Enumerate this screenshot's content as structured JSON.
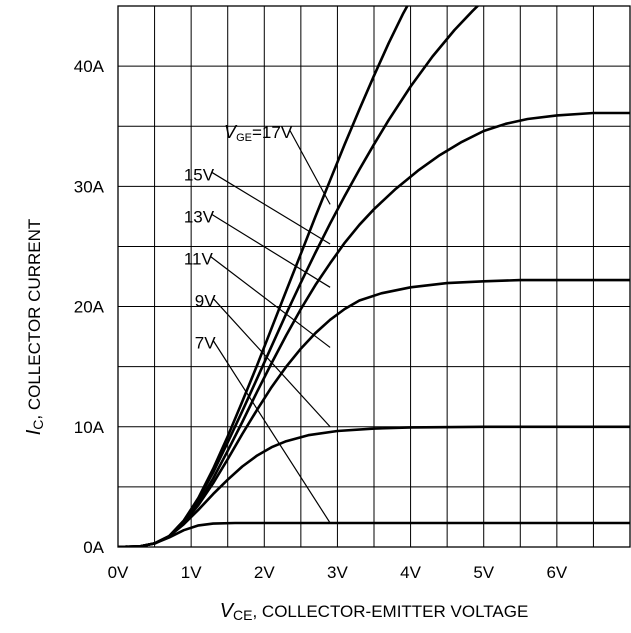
{
  "chart_data": {
    "type": "line",
    "xlim": [
      0,
      7
    ],
    "ylim": [
      0,
      45
    ],
    "grid": true,
    "x_ticks": [
      {
        "value": 0,
        "label": "0V"
      },
      {
        "value": 1,
        "label": "1V"
      },
      {
        "value": 2,
        "label": "2V"
      },
      {
        "value": 3,
        "label": "3V"
      },
      {
        "value": 4,
        "label": "4V"
      },
      {
        "value": 5,
        "label": "5V"
      },
      {
        "value": 6,
        "label": "6V"
      }
    ],
    "y_ticks": [
      {
        "value": 0,
        "label": "0A"
      },
      {
        "value": 10,
        "label": "10A"
      },
      {
        "value": 20,
        "label": "20A"
      },
      {
        "value": 30,
        "label": "30A"
      },
      {
        "value": 40,
        "label": "40A"
      }
    ],
    "xlabel": {
      "symbol": "V",
      "subscript": "CE",
      "text": ", COLLECTOR-EMITTER VOLTAGE"
    },
    "ylabel": {
      "symbol": "I",
      "subscript": "C",
      "text": ", COLLECTOR CURRENT"
    },
    "legend_prefix": {
      "symbol": "V",
      "subscript": "GE",
      "text": "="
    },
    "series": [
      {
        "name": "7V",
        "label_at": {
          "x": 1.05,
          "y": 16.5
        },
        "leader_to": {
          "x": 2.9,
          "y": 2.0
        },
        "points": [
          [
            0,
            0
          ],
          [
            0.3,
            0.05
          ],
          [
            0.5,
            0.3
          ],
          [
            0.7,
            0.8
          ],
          [
            0.9,
            1.4
          ],
          [
            1.1,
            1.8
          ],
          [
            1.3,
            1.95
          ],
          [
            1.6,
            2.0
          ],
          [
            2,
            2.0
          ],
          [
            7,
            2.0
          ]
        ]
      },
      {
        "name": "9V",
        "label_at": {
          "x": 1.05,
          "y": 20.0
        },
        "leader_to": {
          "x": 2.9,
          "y": 10.0
        },
        "points": [
          [
            0,
            0
          ],
          [
            0.3,
            0.05
          ],
          [
            0.5,
            0.3
          ],
          [
            0.7,
            0.9
          ],
          [
            0.9,
            1.9
          ],
          [
            1.1,
            3.1
          ],
          [
            1.3,
            4.4
          ],
          [
            1.5,
            5.6
          ],
          [
            1.7,
            6.7
          ],
          [
            1.9,
            7.6
          ],
          [
            2.1,
            8.3
          ],
          [
            2.3,
            8.8
          ],
          [
            2.6,
            9.3
          ],
          [
            3,
            9.65
          ],
          [
            3.5,
            9.85
          ],
          [
            4,
            9.95
          ],
          [
            5,
            10.0
          ],
          [
            7,
            10.0
          ]
        ]
      },
      {
        "name": "11V",
        "label_at": {
          "x": 0.9,
          "y": 23.5
        },
        "leader_to": {
          "x": 2.9,
          "y": 16.6
        },
        "points": [
          [
            0,
            0
          ],
          [
            0.3,
            0.05
          ],
          [
            0.5,
            0.3
          ],
          [
            0.7,
            0.9
          ],
          [
            0.9,
            2.0
          ],
          [
            1.1,
            3.5
          ],
          [
            1.3,
            5.3
          ],
          [
            1.5,
            7.3
          ],
          [
            1.7,
            9.4
          ],
          [
            1.9,
            11.4
          ],
          [
            2.1,
            13.3
          ],
          [
            2.3,
            15.0
          ],
          [
            2.5,
            16.5
          ],
          [
            2.7,
            17.8
          ],
          [
            2.9,
            18.9
          ],
          [
            3.1,
            19.8
          ],
          [
            3.3,
            20.5
          ],
          [
            3.6,
            21.1
          ],
          [
            4,
            21.6
          ],
          [
            4.5,
            21.95
          ],
          [
            5,
            22.1
          ],
          [
            5.5,
            22.2
          ],
          [
            7,
            22.2
          ]
        ]
      },
      {
        "name": "13V",
        "label_at": {
          "x": 0.9,
          "y": 27.0
        },
        "leader_to": {
          "x": 2.9,
          "y": 21.6
        },
        "points": [
          [
            0,
            0
          ],
          [
            0.3,
            0.05
          ],
          [
            0.5,
            0.3
          ],
          [
            0.7,
            0.9
          ],
          [
            0.9,
            2.1
          ],
          [
            1.1,
            3.7
          ],
          [
            1.3,
            5.7
          ],
          [
            1.5,
            8.0
          ],
          [
            1.7,
            10.4
          ],
          [
            1.9,
            12.9
          ],
          [
            2.1,
            15.3
          ],
          [
            2.3,
            17.6
          ],
          [
            2.5,
            19.8
          ],
          [
            2.7,
            21.8
          ],
          [
            2.9,
            23.6
          ],
          [
            3.1,
            25.3
          ],
          [
            3.3,
            26.8
          ],
          [
            3.5,
            28.1
          ],
          [
            3.8,
            29.8
          ],
          [
            4.1,
            31.3
          ],
          [
            4.4,
            32.6
          ],
          [
            4.7,
            33.7
          ],
          [
            5,
            34.6
          ],
          [
            5.3,
            35.2
          ],
          [
            5.6,
            35.6
          ],
          [
            6,
            35.9
          ],
          [
            6.5,
            36.1
          ],
          [
            7,
            36.1
          ]
        ]
      },
      {
        "name": "15V",
        "label_at": {
          "x": 0.9,
          "y": 30.5
        },
        "leader_to": {
          "x": 2.9,
          "y": 25.2
        },
        "points": [
          [
            0,
            0
          ],
          [
            0.3,
            0.05
          ],
          [
            0.5,
            0.3
          ],
          [
            0.7,
            0.9
          ],
          [
            0.9,
            2.2
          ],
          [
            1.1,
            4.0
          ],
          [
            1.3,
            6.2
          ],
          [
            1.5,
            8.7
          ],
          [
            1.7,
            11.3
          ],
          [
            1.9,
            14.0
          ],
          [
            2.1,
            16.7
          ],
          [
            2.3,
            19.4
          ],
          [
            2.5,
            22.0
          ],
          [
            2.7,
            24.5
          ],
          [
            2.9,
            26.9
          ],
          [
            3.1,
            29.2
          ],
          [
            3.3,
            31.4
          ],
          [
            3.5,
            33.5
          ],
          [
            3.7,
            35.5
          ],
          [
            4,
            38.3
          ],
          [
            4.3,
            40.8
          ],
          [
            4.6,
            43.0
          ],
          [
            4.85,
            44.6
          ],
          [
            4.95,
            45.2
          ]
        ]
      },
      {
        "name": "17V",
        "label_at": {
          "x": 1.45,
          "y": 34.0
        },
        "leader_to": {
          "x": 2.9,
          "y": 28.5
        },
        "points": [
          [
            0,
            0
          ],
          [
            0.3,
            0.05
          ],
          [
            0.5,
            0.3
          ],
          [
            0.7,
            0.9
          ],
          [
            0.9,
            2.2
          ],
          [
            1.1,
            4.1
          ],
          [
            1.3,
            6.5
          ],
          [
            1.5,
            9.2
          ],
          [
            1.7,
            12.1
          ],
          [
            1.9,
            15.1
          ],
          [
            2.1,
            18.2
          ],
          [
            2.3,
            21.3
          ],
          [
            2.5,
            24.4
          ],
          [
            2.7,
            27.5
          ],
          [
            2.9,
            30.5
          ],
          [
            3.1,
            33.5
          ],
          [
            3.3,
            36.4
          ],
          [
            3.5,
            39.2
          ],
          [
            3.7,
            41.9
          ],
          [
            3.9,
            44.4
          ],
          [
            4.0,
            45.5
          ]
        ]
      }
    ]
  }
}
